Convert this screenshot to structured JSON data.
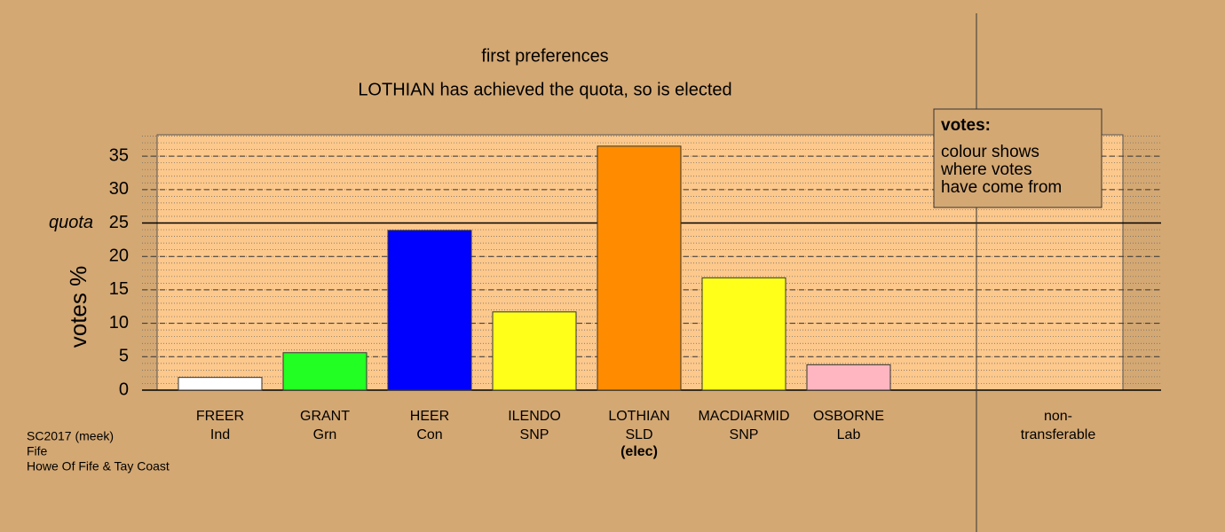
{
  "chart_data": {
    "type": "bar",
    "title": "first preferences",
    "subtitle": "LOTHIAN has achieved the quota, so is elected",
    "y_label": "votes %",
    "categories": [
      "FREER",
      "GRANT",
      "HEER",
      "ILENDO",
      "LOTHIAN",
      "MACDIARMID",
      "OSBORNE",
      "non-"
    ],
    "parties": [
      "Ind",
      "Grn",
      "Con",
      "SNP",
      "SLD",
      "SNP",
      "Lab",
      "transferable"
    ],
    "notes": [
      null,
      null,
      null,
      null,
      "(elec)",
      null,
      null,
      null
    ],
    "values": [
      1.9,
      5.6,
      23.9,
      11.7,
      36.5,
      16.8,
      3.8,
      null
    ],
    "colors": [
      "#ffffff",
      "#22ff22",
      "#0000ff",
      "#ffff1a",
      "#ff8c00",
      "#ffff1a",
      "#ffb6c1",
      null
    ],
    "ylim": [
      0,
      38.2
    ],
    "yticks": [
      0,
      5,
      10,
      15,
      20,
      25,
      30,
      35
    ],
    "grid": true,
    "minor_grid_step": 1,
    "quota": {
      "value": 25,
      "label": "quota"
    },
    "legend": {
      "title": "votes:",
      "lines": [
        "colour shows",
        "where votes",
        "have come from"
      ]
    },
    "footnote": [
      "SC2017 (meek)",
      "Fife",
      "Howe Of Fife & Tay Coast"
    ]
  }
}
